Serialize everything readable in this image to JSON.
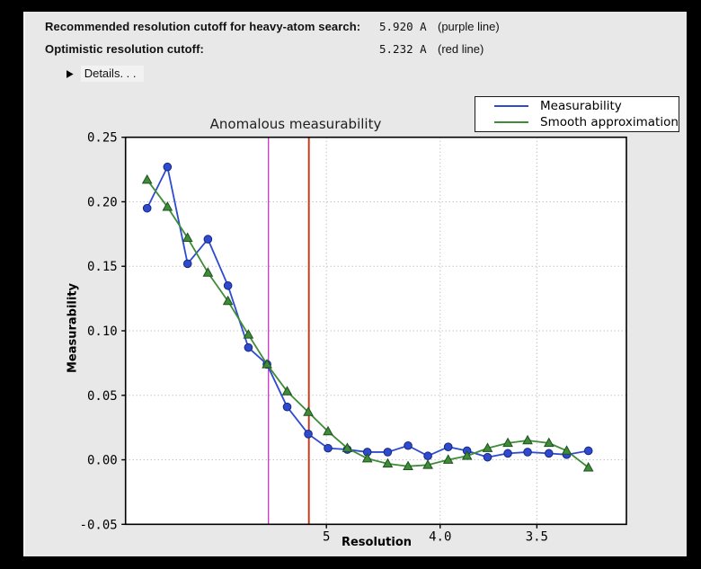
{
  "header": {
    "rows": [
      {
        "label": "Recommended resolution cutoff for heavy-atom search:",
        "value": "5.920 A",
        "note": "(purple line)"
      },
      {
        "label": "Optimistic resolution cutoff:",
        "value": "5.232 A",
        "note": "(red line)"
      }
    ],
    "details_label": "Details. . .",
    "disclosure_icon": "▶"
  },
  "chart_data": {
    "type": "line",
    "title": "Anomalous measurability",
    "xlabel": "Resolution",
    "ylabel": "Measurability",
    "grid": true,
    "legend_position": "upper-right-outside",
    "x_scale": "inverse-square-of-resolution (A), resolution decreases to the right",
    "xlim_inv_sq": [
      0.000267,
      0.099346
    ],
    "ylim": [
      -0.05,
      0.25
    ],
    "yticks": [
      0.25,
      0.2,
      0.15,
      0.1,
      0.05,
      0.0,
      -0.05
    ],
    "ytick_labels": [
      "0.25",
      "0.20",
      "0.15",
      "0.10",
      "0.05",
      "0.00",
      "-0.05"
    ],
    "xticks_resolution": [
      5,
      4,
      3.5
    ],
    "xtick_labels": [
      "5",
      "4.0",
      "3.5"
    ],
    "x_resolution": [
      14.85,
      10.81,
      8.93,
      7.77,
      6.98,
      6.38,
      5.95,
      5.57,
      5.24,
      4.98,
      4.76,
      4.56,
      4.38,
      4.22,
      4.08,
      3.95,
      3.84,
      3.73,
      3.63,
      3.54,
      3.45,
      3.38,
      3.3
    ],
    "series": [
      {
        "name": "Measurability",
        "color": "#2e4bd0",
        "marker": "circle",
        "marker_edge": "#16277d",
        "values": [
          0.195,
          0.227,
          0.152,
          0.171,
          0.135,
          0.087,
          0.074,
          0.041,
          0.02,
          0.009,
          0.008,
          0.006,
          0.006,
          0.011,
          0.003,
          0.01,
          0.007,
          0.002,
          0.005,
          0.006,
          0.005,
          0.004,
          0.007
        ]
      },
      {
        "name": "Smooth approximation",
        "color": "#3f8b38",
        "marker": "triangle",
        "marker_edge": "#1e5220",
        "values": [
          0.217,
          0.196,
          0.172,
          0.145,
          0.123,
          0.097,
          0.074,
          0.053,
          0.037,
          0.022,
          0.009,
          0.001,
          -0.003,
          -0.005,
          -0.004,
          0.0,
          0.003,
          0.009,
          0.013,
          0.015,
          0.013,
          0.007,
          -0.006
        ]
      }
    ],
    "vlines": [
      {
        "name": "recommended-cutoff-line",
        "resolution": 5.92,
        "color": "#cc3fcc",
        "label": "purple line"
      },
      {
        "name": "optimistic-cutoff-line",
        "resolution": 5.232,
        "color": "#cc3311",
        "label": "red line"
      }
    ],
    "grid_color": "#ababab",
    "plot_bg": "#ffffff",
    "spine_color": "#000000"
  }
}
